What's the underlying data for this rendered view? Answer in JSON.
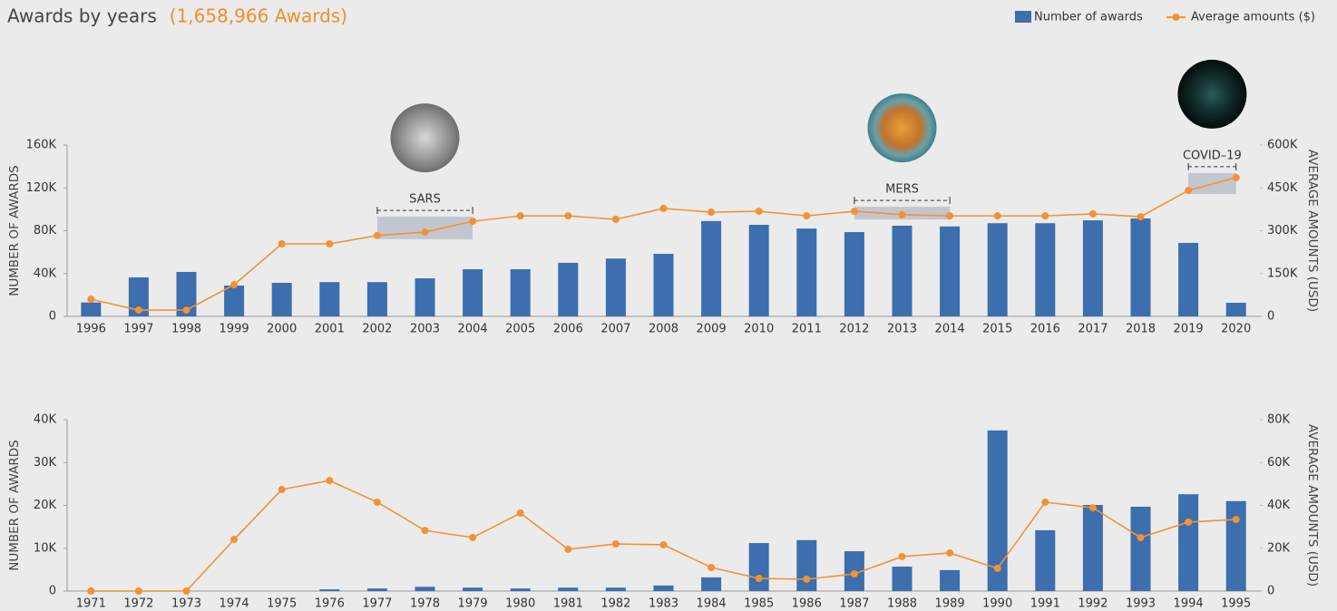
{
  "title": "Awards by years",
  "subtitle": "(1,658,966 Awards)",
  "chart_data": [
    {
      "type": "bar-line",
      "categories": [
        "1996",
        "1997",
        "1998",
        "1999",
        "2000",
        "2001",
        "2002",
        "2003",
        "2004",
        "2005",
        "2006",
        "2007",
        "2008",
        "2009",
        "2010",
        "2011",
        "2012",
        "2013",
        "2014",
        "2015",
        "2016",
        "2017",
        "2018",
        "2019",
        "2020"
      ],
      "series": [
        {
          "name": "Number of awards",
          "color": "#3d6eae",
          "values": [
            13000,
            36400,
            41500,
            28800,
            31300,
            32000,
            32000,
            35500,
            44000,
            44000,
            50000,
            54000,
            58400,
            89000,
            85500,
            82000,
            78700,
            84700,
            84000,
            87000,
            87000,
            89700,
            91400,
            68600,
            12700
          ]
        },
        {
          "name": "Average amounts ($)",
          "color": "#f39234",
          "axis": "y2",
          "values": [
            60000,
            22000,
            22000,
            111000,
            254000,
            254000,
            283000,
            295000,
            333000,
            352000,
            352000,
            340000,
            378000,
            365000,
            368000,
            352000,
            368000,
            356000,
            352000,
            352000,
            352000,
            359000,
            349000,
            441000,
            486000
          ]
        }
      ],
      "ylabel": "NUMBER OF AWARDS",
      "y2label": "AVERAGE AMOUNTS (USD)",
      "ylim": [
        0,
        160000
      ],
      "yticks": [
        0,
        {
          "value": 40000,
          "label": "40K"
        },
        {
          "value": 80000,
          "label": "80K"
        },
        {
          "value": 120000,
          "label": "120K"
        },
        {
          "value": 160000,
          "label": "160K"
        }
      ],
      "y2lim": [
        0,
        600000
      ],
      "y2ticks": [
        0,
        {
          "value": 150000,
          "label": "150K"
        },
        {
          "value": 300000,
          "label": "300K"
        },
        {
          "value": 450000,
          "label": "450K"
        },
        {
          "value": 600000,
          "label": "600K"
        }
      ],
      "annotations": [
        {
          "text": "SARS",
          "from": "2002",
          "to": "2004"
        },
        {
          "text": "MERS",
          "from": "2012",
          "to": "2014"
        },
        {
          "text": "COVID–19",
          "from": "2019",
          "to": "2020"
        }
      ]
    },
    {
      "type": "bar-line",
      "categories": [
        "1971",
        "1972",
        "1973",
        "1974",
        "1975",
        "1976",
        "1977",
        "1978",
        "1979",
        "1980",
        "1981",
        "1982",
        "1983",
        "1984",
        "1985",
        "1986",
        "1987",
        "1988",
        "1989",
        "1990",
        "1991",
        "1992",
        "1993",
        "1994",
        "1995"
      ],
      "series": [
        {
          "color": "#3d6eae",
          "values": [
            0,
            0,
            0,
            0,
            0,
            400,
            600,
            1000,
            800,
            600,
            800,
            800,
            1300,
            3200,
            11200,
            11900,
            9300,
            5700,
            4900,
            37500,
            14200,
            20100,
            19700,
            22600,
            21000
          ]
        },
        {
          "color": "#f39234",
          "axis": "y2",
          "values": [
            0,
            0,
            0,
            24100,
            47400,
            51600,
            41500,
            28300,
            25000,
            36400,
            19500,
            22000,
            21600,
            11000,
            5900,
            5500,
            8000,
            16100,
            17800,
            10600,
            41500,
            38900,
            25000,
            32200,
            33400
          ]
        }
      ],
      "ylabel": "NUMBER OF AWARDS",
      "y2label": "AVERAGE AMOUNTS (USD)",
      "ylim": [
        0,
        40000
      ],
      "yticks": [
        0,
        {
          "value": 10000,
          "label": "10K"
        },
        {
          "value": 20000,
          "label": "20K"
        },
        {
          "value": 30000,
          "label": "30K"
        },
        {
          "value": 40000,
          "label": "40K"
        }
      ],
      "y2lim": [
        0,
        80000
      ],
      "y2ticks": [
        0,
        {
          "value": 20000,
          "label": "20K"
        },
        {
          "value": 40000,
          "label": "40K"
        },
        {
          "value": 60000,
          "label": "60K"
        },
        {
          "value": 80000,
          "label": "80K"
        }
      ]
    }
  ]
}
